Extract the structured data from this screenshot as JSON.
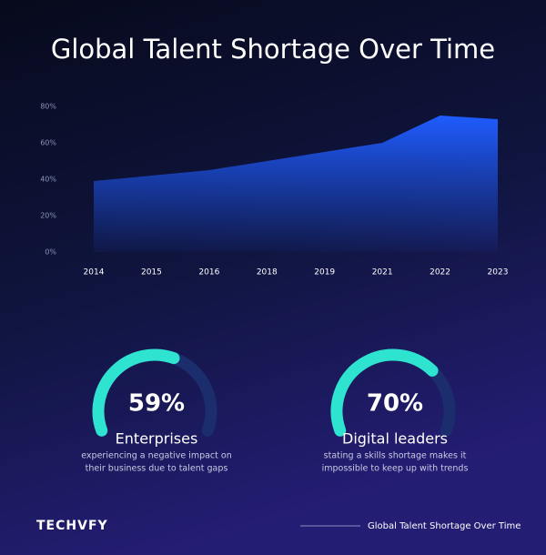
{
  "chart_data": {
    "type": "area",
    "title": "Global Talent Shortage Over Time",
    "categories": [
      "2014",
      "2015",
      "2016",
      "2018",
      "2019",
      "2021",
      "2022",
      "2023"
    ],
    "values": [
      39,
      42,
      45,
      50,
      55,
      60,
      75,
      73
    ],
    "color": "#1f5cff",
    "ylim": [
      0,
      80
    ],
    "yticks": [
      {
        "value": 0,
        "label": "0%"
      },
      {
        "value": 20,
        "label": "20%"
      },
      {
        "value": 40,
        "label": "40%"
      },
      {
        "value": 60,
        "label": "60%"
      },
      {
        "value": 80,
        "label": "80%"
      }
    ]
  },
  "gauges": [
    {
      "value": 59,
      "value_label": "59%",
      "ylim": [
        0,
        100
      ],
      "title": "Enterprises",
      "description": [
        "experiencing a negative impact on",
        "their business due to talent gaps"
      ]
    },
    {
      "value": 70,
      "value_label": "70%",
      "ylim": [
        0,
        100
      ],
      "title": "Digital leaders",
      "description": [
        "stating a skills shortage makes it",
        "impossible to keep up with trends"
      ]
    }
  ],
  "footer": {
    "brand": "TECHVFY",
    "caption": "Global Talent Shortage Over Time"
  }
}
